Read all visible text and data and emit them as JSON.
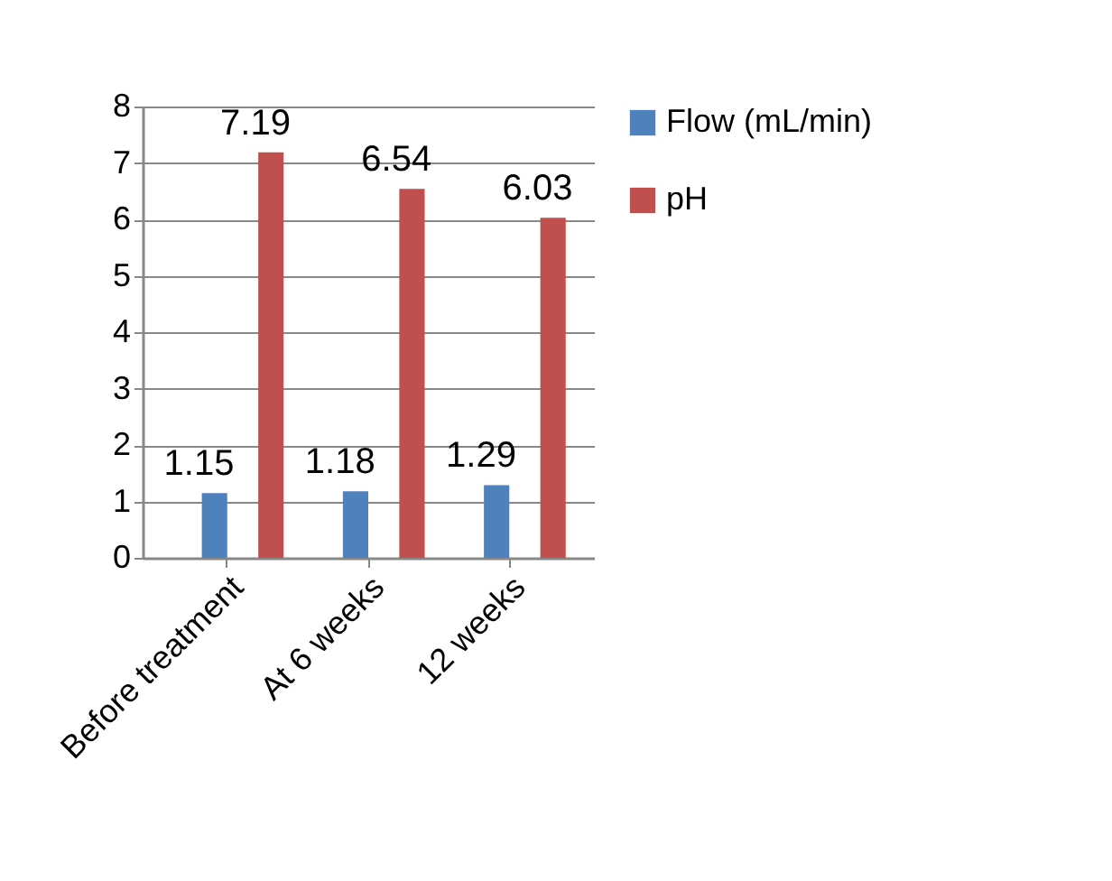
{
  "chart_data": {
    "type": "bar",
    "categories": [
      "Before treatment",
      "At 6 weeks",
      "12 weeks"
    ],
    "series": [
      {
        "name": "Flow (mL/min)",
        "color": "#4f81bd",
        "values": [
          1.15,
          1.18,
          1.29
        ]
      },
      {
        "name": "pH",
        "color": "#c0504d",
        "values": [
          7.19,
          6.54,
          6.03
        ]
      }
    ],
    "ylim": [
      0,
      8
    ],
    "yticks": [
      0,
      1,
      2,
      3,
      4,
      5,
      6,
      7,
      8
    ],
    "grid": "y",
    "legend": "right",
    "data_labels": true
  }
}
